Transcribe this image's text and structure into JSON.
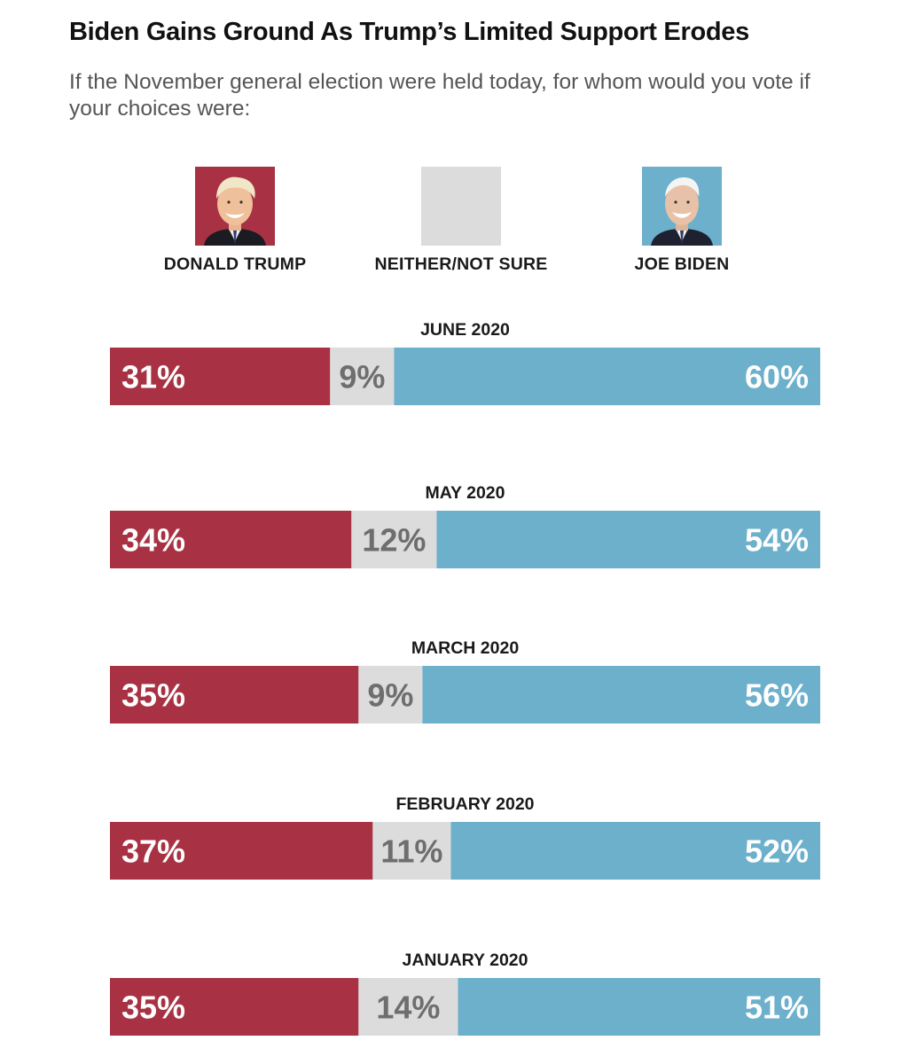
{
  "title": "Biden Gains Ground As Trump’s Limited Support Erodes",
  "subtitle": "If the November general election were held today, for whom would you vote if your choices were:",
  "legend": [
    {
      "name": "DONALD TRUMP",
      "color": "#a83243",
      "icon": "donald-trump-portrait-icon"
    },
    {
      "name": "NEITHER/NOT SURE",
      "color": "#dcdcdc",
      "icon": "neither-swatch"
    },
    {
      "name": "JOE BIDEN",
      "color": "#6cb0cc",
      "icon": "joe-biden-portrait-icon"
    }
  ],
  "colors": {
    "trump": "#a83243",
    "neither": "#dcdcdc",
    "biden": "#6cb0cc",
    "label_light": "#ffffff",
    "label_neither": "#6e6e6e"
  },
  "chart_data": {
    "type": "bar",
    "stacked": true,
    "orientation": "horizontal",
    "title": "Biden Gains Ground As Trump’s Limited Support Erodes",
    "unit": "%",
    "categories": [
      "JUNE 2020",
      "MAY 2020",
      "MARCH 2020",
      "FEBRUARY 2020",
      "JANUARY 2020"
    ],
    "series": [
      {
        "name": "DONALD TRUMP",
        "values": [
          31,
          34,
          35,
          37,
          35
        ]
      },
      {
        "name": "NEITHER/NOT SURE",
        "values": [
          9,
          12,
          9,
          11,
          14
        ]
      },
      {
        "name": "JOE BIDEN",
        "values": [
          60,
          54,
          56,
          52,
          51
        ]
      }
    ],
    "data_labels": [
      [
        "31%",
        "9%",
        "60%"
      ],
      [
        "34%",
        "12%",
        "54%"
      ],
      [
        "35%",
        "9%",
        "56%"
      ],
      [
        "37%",
        "11%",
        "52%"
      ],
      [
        "35%",
        "14%",
        "51%"
      ]
    ]
  }
}
